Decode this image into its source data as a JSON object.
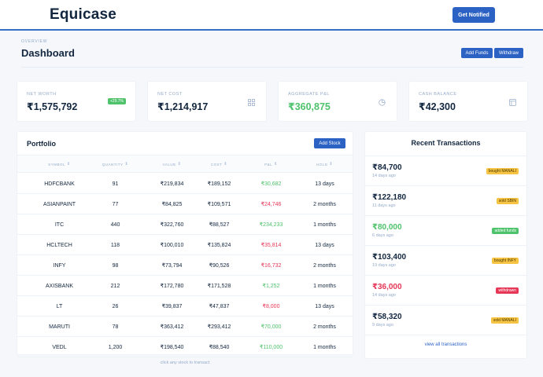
{
  "header": {
    "brand": "Equicase",
    "notify_label": "Get Notified"
  },
  "page": {
    "eyebrow": "OVERVIEW",
    "title": "Dashboard",
    "add_funds_label": "Add Funds",
    "withdraw_label": "Withdraw"
  },
  "stats": [
    {
      "label": "NET WORTH",
      "value": "₹1,575,792",
      "badge": "+29.7%",
      "icon": "none"
    },
    {
      "label": "NET COST",
      "value": "₹1,214,917",
      "icon": "grid-icon"
    },
    {
      "label": "AGGREGATE P&L",
      "value": "₹360,875",
      "icon": "pie-chart-icon"
    },
    {
      "label": "CASH BALANCE",
      "value": "₹42,300",
      "icon": "wallet-icon"
    }
  ],
  "portfolio": {
    "title": "Portfolio",
    "add_stock_label": "Add Stock",
    "columns": [
      "SYMBOL",
      "QUANTITY",
      "VALUE",
      "COST",
      "P&L",
      "HOLD"
    ],
    "sort_glyph": "⇕",
    "rows": [
      {
        "symbol": "HDFCBANK",
        "quantity": "91",
        "value": "₹219,834",
        "cost": "₹189,152",
        "pnl": "₹30,682",
        "pnl_sign": "pos",
        "hold": "13 days"
      },
      {
        "symbol": "ASIANPAINT",
        "quantity": "77",
        "value": "₹84,825",
        "cost": "₹109,571",
        "pnl": "₹24,746",
        "pnl_sign": "neg",
        "hold": "2 months"
      },
      {
        "symbol": "ITC",
        "quantity": "440",
        "value": "₹322,760",
        "cost": "₹88,527",
        "pnl": "₹234,233",
        "pnl_sign": "pos",
        "hold": "1 months"
      },
      {
        "symbol": "HCLTECH",
        "quantity": "118",
        "value": "₹100,010",
        "cost": "₹135,824",
        "pnl": "₹35,814",
        "pnl_sign": "neg",
        "hold": "13 days"
      },
      {
        "symbol": "INFY",
        "quantity": "98",
        "value": "₹73,794",
        "cost": "₹90,526",
        "pnl": "₹16,732",
        "pnl_sign": "neg",
        "hold": "2 months"
      },
      {
        "symbol": "AXISBANK",
        "quantity": "212",
        "value": "₹172,780",
        "cost": "₹171,528",
        "pnl": "₹1,252",
        "pnl_sign": "pos",
        "hold": "1 months"
      },
      {
        "symbol": "LT",
        "quantity": "26",
        "value": "₹39,837",
        "cost": "₹47,837",
        "pnl": "₹8,000",
        "pnl_sign": "neg",
        "hold": "13 days"
      },
      {
        "symbol": "MARUTI",
        "quantity": "78",
        "value": "₹363,412",
        "cost": "₹293,412",
        "pnl": "₹70,000",
        "pnl_sign": "pos",
        "hold": "2 months"
      },
      {
        "symbol": "VEDL",
        "quantity": "1,200",
        "value": "₹198,540",
        "cost": "₹88,540",
        "pnl": "₹110,000",
        "pnl_sign": "pos",
        "hold": "1 months"
      }
    ],
    "footnote": "click any stock to transact"
  },
  "recent": {
    "title": "Recent Transactions",
    "items": [
      {
        "amount": "₹84,700",
        "time": "14 days ago",
        "badge": "bought MANALI",
        "kind": "buy"
      },
      {
        "amount": "₹122,180",
        "time": "11 days ago",
        "badge": "sold SBIN",
        "kind": "sell"
      },
      {
        "amount": "₹80,000",
        "time": "6 days ago",
        "badge": "added funds",
        "kind": "add"
      },
      {
        "amount": "₹103,400",
        "time": "19 days ago",
        "badge": "bought INFY",
        "kind": "buy"
      },
      {
        "amount": "₹36,000",
        "time": "14 days ago",
        "badge": "withdrawn",
        "kind": "withdraw"
      },
      {
        "amount": "₹58,320",
        "time": "9 days ago",
        "badge": "sold MANALI",
        "kind": "sell"
      }
    ],
    "view_all_label": "view all transactions"
  },
  "colors": {
    "accent": "#2c62c4",
    "positive": "#4fc26c",
    "negative": "#e63757",
    "warning": "#f6c343",
    "muted": "#95aac9"
  }
}
